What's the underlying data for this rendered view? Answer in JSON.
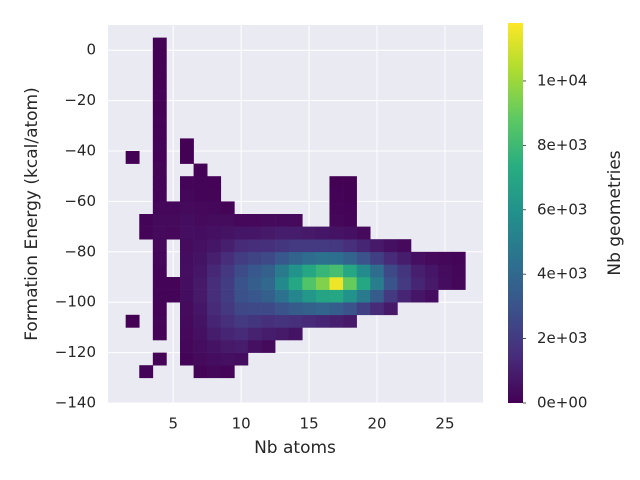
{
  "chart_data": {
    "type": "heatmap",
    "x_label": "Nb atoms",
    "y_label": "Formation Energy (kcal/atom)",
    "xlim": [
      0.2,
      27.8
    ],
    "ylim": [
      -140,
      10
    ],
    "xticks": [
      5,
      10,
      15,
      20,
      25
    ],
    "yticks": [
      0,
      {
        "value": -20,
        "label": "−20"
      },
      {
        "value": -40,
        "label": "−40"
      },
      {
        "value": -60,
        "label": "−60"
      },
      {
        "value": -80,
        "label": "−80"
      },
      {
        "value": -100,
        "label": "−100"
      },
      {
        "value": -120,
        "label": "−120"
      },
      {
        "value": -140,
        "label": "−140"
      }
    ],
    "grid": true,
    "colormap": "viridis",
    "x_bins": [
      1.5,
      2.5,
      3.5,
      4.5,
      5.5,
      6.5,
      7.5,
      8.5,
      9.5,
      10.5,
      11.5,
      12.5,
      13.5,
      14.5,
      15.5,
      16.5,
      17.5,
      18.5,
      19.5,
      20.5,
      21.5,
      22.5,
      23.5,
      24.5,
      25.5,
      26.5
    ],
    "y_bins": [
      -135,
      -130,
      -125,
      -120,
      -115,
      -110,
      -105,
      -100,
      -95,
      -90,
      -85,
      -80,
      -75,
      -70,
      -65,
      -60,
      -55,
      -50,
      -45,
      -40,
      -35,
      -30,
      -25,
      -20,
      -15,
      -10,
      -5,
      0,
      5
    ],
    "counts": [
      [
        null,
        null,
        null,
        null,
        null,
        50,
        null,
        null,
        null,
        null,
        null,
        null,
        null,
        null,
        null,
        null,
        null,
        null,
        50,
        null,
        null,
        null,
        null,
        null,
        null,
        null,
        null,
        null
      ],
      [
        null,
        100,
        null,
        null,
        null,
        null,
        null,
        null,
        null,
        null,
        null,
        null,
        150,
        150,
        null,
        null,
        null,
        null,
        null,
        null,
        null,
        null,
        null,
        null,
        null,
        null,
        null,
        null
      ],
      [
        null,
        null,
        80,
        null,
        60,
        100,
        80,
        150,
        100,
        150,
        200,
        250,
        300,
        300,
        200,
        150,
        100,
        120,
        80,
        100,
        60,
        80,
        50,
        60,
        40,
        50,
        40,
        30
      ],
      [
        null,
        null,
        null,
        null,
        null,
        null,
        null,
        100,
        150,
        null,
        null,
        null,
        250,
        300,
        200,
        null,
        null,
        null,
        null,
        null,
        null,
        null,
        null,
        null,
        null,
        null,
        null,
        null
      ],
      [
        null,
        null,
        150,
        200,
        250,
        300,
        350,
        400,
        450,
        450,
        400,
        350,
        450,
        400,
        300,
        200,
        150,
        null,
        50,
        40,
        null,
        null,
        null,
        null,
        null,
        null,
        null,
        null
      ],
      [
        null,
        150,
        300,
        400,
        500,
        600,
        700,
        800,
        800,
        700,
        600,
        500,
        400,
        300,
        250,
        150,
        100,
        60,
        null,
        null,
        null,
        null,
        null,
        null,
        null,
        null,
        null,
        null
      ],
      [
        null,
        200,
        400,
        600,
        900,
        1200,
        1400,
        1500,
        1500,
        1300,
        1000,
        700,
        500,
        350,
        200,
        120,
        60,
        null,
        null,
        null,
        null,
        null,
        null,
        null,
        null,
        null,
        null,
        null
      ],
      [
        null,
        150,
        500,
        800,
        1200,
        1600,
        1900,
        2100,
        2100,
        1900,
        1500,
        1000,
        600,
        350,
        120,
        null,
        null,
        null,
        null,
        null,
        null,
        null,
        null,
        null,
        null,
        null,
        null,
        null
      ],
      [
        null,
        null,
        400,
        900,
        1400,
        2000,
        2500,
        2900,
        3000,
        2700,
        2100,
        1400,
        700,
        250,
        null,
        null,
        null,
        null,
        null,
        null,
        null,
        null,
        null,
        null,
        null,
        null,
        null,
        null
      ],
      [
        null,
        null,
        null,
        500,
        1100,
        1800,
        2600,
        3200,
        3500,
        3200,
        2400,
        1500,
        700,
        250,
        null,
        null,
        null,
        null,
        null,
        null,
        null,
        null,
        null,
        null,
        null,
        null,
        null,
        null
      ],
      [
        null,
        null,
        null,
        300,
        900,
        1600,
        2600,
        3600,
        4000,
        3600,
        2600,
        1600,
        800,
        300,
        null,
        null,
        null,
        null,
        null,
        null,
        null,
        null,
        null,
        null,
        null,
        null,
        null,
        null
      ],
      [
        null,
        null,
        null,
        null,
        800,
        1700,
        3000,
        4400,
        5500,
        4800,
        3200,
        1800,
        900,
        300,
        null,
        null,
        null,
        null,
        null,
        null,
        null,
        null,
        null,
        null,
        null,
        null,
        null,
        null
      ],
      [
        null,
        null,
        null,
        null,
        600,
        1600,
        3400,
        5400,
        7000,
        6000,
        3800,
        2000,
        900,
        300,
        null,
        null,
        null,
        null,
        null,
        null,
        null,
        null,
        null,
        null,
        null,
        null,
        null,
        null
      ],
      [
        null,
        null,
        null,
        null,
        null,
        1400,
        3600,
        6200,
        8500,
        7000,
        4200,
        2000,
        800,
        null,
        null,
        null,
        null,
        null,
        null,
        null,
        null,
        null,
        null,
        null,
        null,
        null,
        null,
        null
      ],
      [
        null,
        null,
        null,
        null,
        null,
        1200,
        3800,
        6800,
        9500,
        7800,
        4400,
        2000,
        700,
        null,
        null,
        null,
        null,
        null,
        null,
        null,
        null,
        null,
        null,
        null,
        null,
        null,
        null,
        null
      ],
      [
        null,
        null,
        null,
        null,
        null,
        1000,
        3500,
        7000,
        11500,
        8200,
        4300,
        1900,
        600,
        200,
        100,
        60,
        50,
        null,
        null,
        null,
        null,
        null,
        null,
        null,
        null,
        null,
        null,
        null
      ],
      [
        null,
        null,
        null,
        null,
        null,
        800,
        3000,
        6000,
        9000,
        7000,
        3800,
        1600,
        500,
        150,
        80,
        50,
        40,
        null,
        null,
        null,
        null,
        null,
        null,
        null,
        null,
        null,
        null,
        null
      ],
      [
        null,
        null,
        null,
        null,
        null,
        null,
        2200,
        4800,
        7000,
        5600,
        3000,
        1200,
        300,
        null,
        null,
        null,
        null,
        null,
        null,
        null,
        null,
        null,
        null,
        null,
        null,
        null,
        null,
        null
      ],
      [
        null,
        null,
        null,
        null,
        null,
        null,
        1400,
        3400,
        5000,
        4200,
        2200,
        800,
        null,
        null,
        null,
        null,
        null,
        null,
        null,
        null,
        null,
        null,
        null,
        null,
        null,
        null,
        null,
        null
      ],
      [
        null,
        null,
        null,
        null,
        null,
        null,
        800,
        2000,
        3000,
        2600,
        1400,
        500,
        null,
        null,
        null,
        null,
        null,
        null,
        null,
        null,
        null,
        null,
        null,
        null,
        null,
        null,
        null,
        null
      ],
      [
        null,
        null,
        null,
        null,
        null,
        null,
        null,
        1200,
        2000,
        1800,
        900,
        300,
        null,
        null,
        null,
        null,
        null,
        null,
        null,
        null,
        null,
        null,
        null,
        null,
        null,
        null,
        null,
        null
      ],
      [
        null,
        null,
        null,
        null,
        null,
        null,
        null,
        700,
        1200,
        1000,
        500,
        null,
        null,
        null,
        null,
        null,
        null,
        null,
        null,
        null,
        null,
        null,
        null,
        null,
        null,
        null,
        null,
        null
      ],
      [
        null,
        null,
        null,
        null,
        null,
        null,
        null,
        400,
        800,
        700,
        300,
        null,
        null,
        null,
        null,
        null,
        null,
        null,
        null,
        null,
        null,
        null,
        null,
        null,
        null,
        null,
        null,
        null
      ],
      [
        null,
        null,
        null,
        null,
        null,
        null,
        null,
        null,
        400,
        350,
        200,
        null,
        null,
        null,
        null,
        null,
        null,
        null,
        null,
        null,
        null,
        null,
        null,
        null,
        null,
        null,
        null,
        null
      ],
      [
        null,
        null,
        null,
        null,
        null,
        null,
        null,
        null,
        200,
        180,
        100,
        null,
        null,
        null,
        null,
        null,
        null,
        null,
        null,
        null,
        null,
        null,
        null,
        null,
        null,
        null,
        null,
        null
      ]
    ],
    "colorbar": {
      "label": "Nb geometries",
      "lim": [
        0,
        11800
      ],
      "ticks": [
        {
          "value": 0,
          "label": "0e+00"
        },
        {
          "value": 2000,
          "label": "2e+03"
        },
        {
          "value": 4000,
          "label": "4e+03"
        },
        {
          "value": 6000,
          "label": "6e+03"
        },
        {
          "value": 8000,
          "label": "8e+03"
        },
        {
          "value": 10000,
          "label": "1e+04"
        }
      ]
    }
  }
}
